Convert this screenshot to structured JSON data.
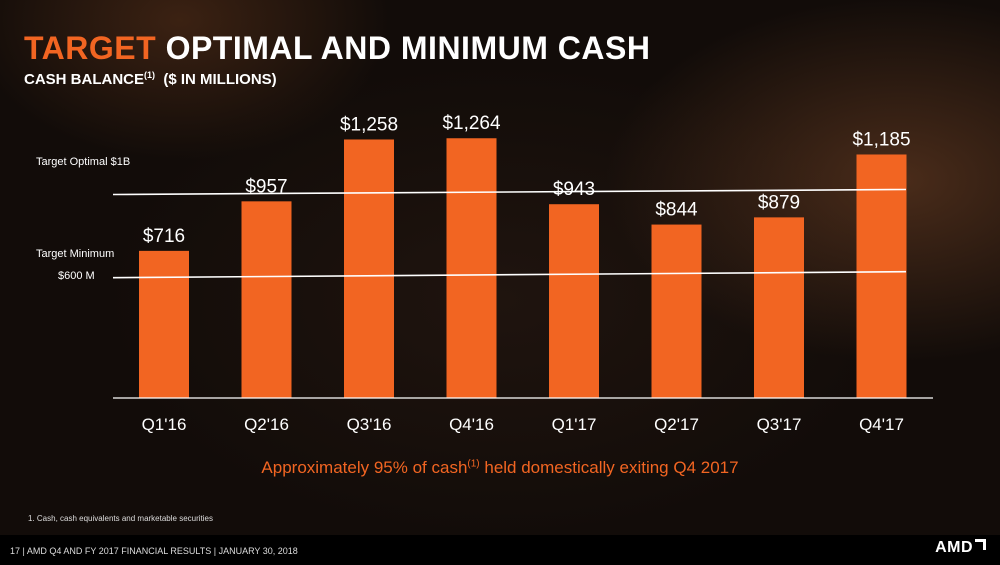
{
  "title": {
    "accent": "TARGET",
    "rest": "OPTIMAL AND MINIMUM CASH"
  },
  "subtitle": {
    "main": "CASH BALANCE",
    "sup": "(1)",
    "unit": "($ IN MILLIONS)"
  },
  "chart_data": {
    "type": "bar",
    "categories": [
      "Q1'16",
      "Q2'16",
      "Q3'16",
      "Q4'16",
      "Q1'17",
      "Q2'17",
      "Q3'17",
      "Q4'17"
    ],
    "values": [
      716,
      957,
      1258,
      1264,
      943,
      844,
      879,
      1185
    ],
    "data_labels": [
      "$716",
      "$957",
      "$1,258",
      "$1,264",
      "$943",
      "$844",
      "$879",
      "$1,185"
    ],
    "ylim": [
      0,
      1400
    ],
    "bar_color": "#f26522",
    "reference_lines": [
      {
        "label": "Target Optimal $1B",
        "value": 1000
      },
      {
        "label": "Target Minimum",
        "label2": "$600 M",
        "value": 600
      }
    ],
    "grid": false
  },
  "note": {
    "before": "Approximately 95% of cash",
    "sup": "(1)",
    "after": " held domestically exiting Q4 2017"
  },
  "footnote": "1.  Cash, cash equivalents and marketable securities",
  "footer": "17  |  AMD Q4 AND FY 2017 FINANCIAL RESULTS  |  JANUARY 30, 2018",
  "logo": "AMD"
}
